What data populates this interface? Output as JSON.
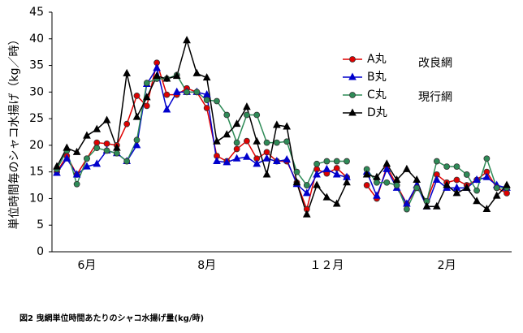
{
  "chart_data": {
    "type": "line",
    "caption": "図2 曳網単位時間あたりのシャコ水揚げ量(kg/時)",
    "y_label": "単位時間毎のシャコ水揚げ（kg／時）",
    "categories": [
      null,
      null,
      null,
      "6月",
      null,
      null,
      null,
      null,
      null,
      null,
      null,
      null,
      null,
      null,
      null,
      "8月",
      null,
      null,
      null,
      null,
      null,
      null,
      null,
      null,
      null,
      null,
      null,
      "１２月",
      null,
      null,
      null,
      null,
      null,
      null,
      null,
      null,
      null,
      null,
      null,
      "2月",
      null,
      null,
      null,
      null,
      null,
      null
    ],
    "ylim": [
      0,
      45
    ],
    "yticks": [
      0,
      5,
      10,
      15,
      20,
      25,
      30,
      35,
      40,
      45
    ],
    "legend_groups": [
      "改良網",
      "現行網"
    ],
    "series": [
      {
        "name": "A丸",
        "color": "#e00000",
        "marker": "circle",
        "values": [
          15,
          18,
          14.5,
          17.5,
          20.5,
          20.3,
          20,
          24,
          29.3,
          27.4,
          35.5,
          29.5,
          29.5,
          30.7,
          30,
          27,
          18,
          17,
          19.3,
          20.8,
          17.5,
          18.7,
          17,
          17,
          13,
          8,
          15.5,
          14.7,
          15.7,
          14,
          null,
          12.5,
          10,
          16,
          12.5,
          9,
          12,
          9.5,
          14.5,
          13,
          13.5,
          12.5,
          13.5,
          15,
          12,
          11
        ]
      },
      {
        "name": "B丸",
        "color": "#0000cc",
        "marker": "triangle",
        "values": [
          14.8,
          17.5,
          14.5,
          16,
          16.5,
          19,
          18.5,
          17,
          20,
          31.5,
          34.5,
          26.7,
          30,
          30,
          30,
          29.5,
          17,
          16.8,
          17.5,
          17.8,
          16.5,
          17.5,
          17,
          17.3,
          12.7,
          11,
          14.5,
          15.5,
          14.5,
          14,
          null,
          15,
          10.5,
          15.5,
          12,
          9,
          12.5,
          8.5,
          13.5,
          12,
          12,
          12,
          13.5,
          14,
          12.5,
          12
        ]
      },
      {
        "name": "C丸",
        "color": "#2e8b57",
        "marker": "circle",
        "values": [
          15.5,
          19,
          12.7,
          17.5,
          19.5,
          19,
          18.5,
          17,
          21,
          31.7,
          32.5,
          32.5,
          33.2,
          30,
          30,
          28.5,
          28.3,
          25.7,
          20.5,
          25.7,
          25.7,
          20.5,
          20.5,
          20.7,
          15,
          12.5,
          16.5,
          17,
          17,
          17,
          null,
          15.5,
          13,
          13,
          12.5,
          8,
          12,
          9.5,
          17,
          16,
          16,
          14.5,
          11.5,
          17.5,
          12,
          12
        ]
      },
      {
        "name": "D丸",
        "color": "#000000",
        "marker": "triangle",
        "values": [
          16,
          19.5,
          18.7,
          21.8,
          23,
          24.7,
          19.5,
          33.5,
          25.3,
          29,
          33,
          32.5,
          33,
          39.7,
          33.5,
          32.7,
          20.7,
          22,
          24,
          27.2,
          20.7,
          14.5,
          23.8,
          23.5,
          13,
          7,
          12.5,
          10.2,
          9,
          13,
          null,
          14.5,
          14,
          16.5,
          13.5,
          15.5,
          13.5,
          8.5,
          8.5,
          12.5,
          11,
          12,
          9.5,
          8,
          10.5,
          12.5
        ]
      }
    ]
  }
}
